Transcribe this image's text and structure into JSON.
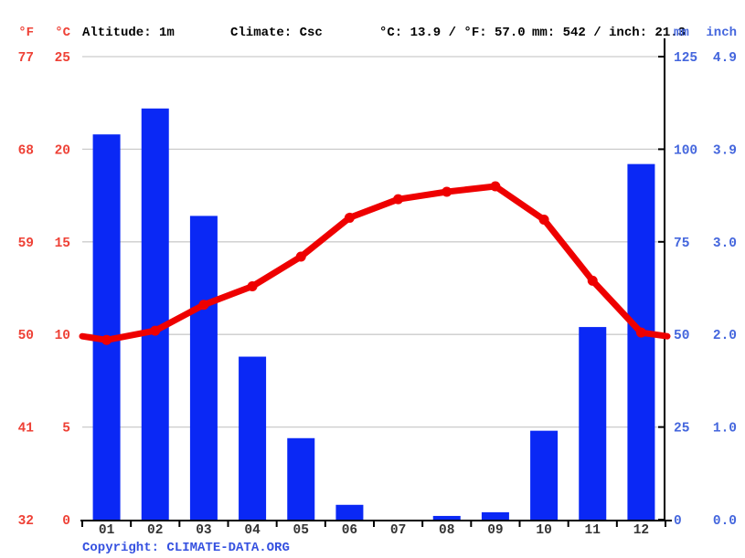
{
  "header": {
    "f_label": "°F",
    "c_label": "°C",
    "altitude": "Altitude: 1m",
    "climate": "Climate: Csc",
    "temp_summary": "°C: 13.9 / °F: 57.0",
    "precip_summary": "mm: 542 / inch: 21.3",
    "mm_label": "mm",
    "inch_label": "inch"
  },
  "axes": {
    "left_f_ticks": [
      "77",
      "68",
      "59",
      "50",
      "41",
      "32"
    ],
    "left_c_ticks": [
      "25",
      "20",
      "15",
      "10",
      "5",
      "0"
    ],
    "right_mm_ticks": [
      "125",
      "100",
      "75",
      "50",
      "25",
      "0"
    ],
    "right_inch_ticks": [
      "4.9",
      "3.9",
      "3.0",
      "2.0",
      "1.0",
      "0.0"
    ]
  },
  "chart_data": {
    "type": "bar+line",
    "categories": [
      "01",
      "02",
      "03",
      "04",
      "05",
      "06",
      "07",
      "08",
      "09",
      "10",
      "11",
      "12"
    ],
    "series": [
      {
        "name": "precipitation",
        "type": "bar",
        "unit": "mm",
        "values": [
          104,
          111,
          82,
          44,
          22,
          4,
          0,
          1,
          2,
          24,
          52,
          96
        ]
      },
      {
        "name": "average-temperature",
        "type": "line",
        "unit": "°C",
        "values": [
          9.7,
          10.2,
          11.6,
          12.6,
          14.2,
          16.3,
          17.3,
          17.7,
          18.0,
          16.2,
          12.9,
          10.1
        ]
      }
    ],
    "temp_axis_c": {
      "min": 0,
      "max": 25,
      "tick_step": 5
    },
    "precip_axis_mm": {
      "min": 0,
      "max": 125,
      "tick_step": 25
    },
    "annual_mean_temp_c": 13.9,
    "annual_precip_mm": 542,
    "grid": true,
    "legend": "none",
    "title": ""
  },
  "colors": {
    "bar_blue": "#0a28f5",
    "line_red": "#ee0000",
    "left_axis_text": "#ee4136",
    "right_axis_text": "#4466dd",
    "month_text": "#333333",
    "gridline": "#cccccc",
    "axis_line": "#000000",
    "link_blue": "#3450e0"
  },
  "footer": {
    "copyright_prefix": "Copyright: ",
    "link_text": "CLIMATE-DATA.ORG"
  }
}
